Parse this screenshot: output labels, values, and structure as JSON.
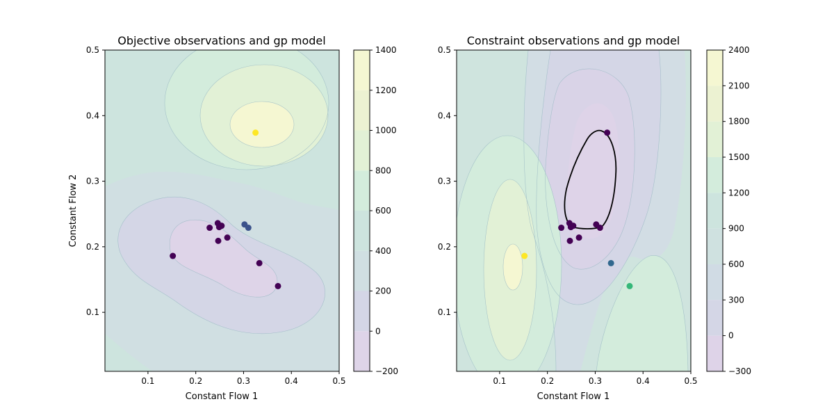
{
  "chart_data": [
    {
      "type": "contour",
      "title": "Objective observations and gp model",
      "xlabel": "Constant Flow 1",
      "ylabel": "Constant Flow 2",
      "xlim": [
        0.01,
        0.5
      ],
      "ylim": [
        0.01,
        0.5
      ],
      "x_ticks": [
        0.1,
        0.2,
        0.3,
        0.4,
        0.5
      ],
      "y_ticks": [
        0.1,
        0.2,
        0.3,
        0.4,
        0.5
      ],
      "colorbar": {
        "ticks": [
          -200,
          0,
          200,
          400,
          600,
          800,
          1000,
          1200,
          1400
        ],
        "range": [
          -200,
          1400
        ]
      },
      "contour_levels": [
        -200,
        0,
        200,
        400,
        600,
        800,
        1000,
        1200,
        1400
      ],
      "points": [
        {
          "x": 0.152,
          "y": 0.186,
          "color": "#440154"
        },
        {
          "x": 0.229,
          "y": 0.229,
          "color": "#440154"
        },
        {
          "x": 0.246,
          "y": 0.236,
          "color": "#440154"
        },
        {
          "x": 0.249,
          "y": 0.23,
          "color": "#440154"
        },
        {
          "x": 0.254,
          "y": 0.232,
          "color": "#440154"
        },
        {
          "x": 0.247,
          "y": 0.209,
          "color": "#440154"
        },
        {
          "x": 0.266,
          "y": 0.214,
          "color": "#440154"
        },
        {
          "x": 0.302,
          "y": 0.234,
          "color": "#3b528b"
        },
        {
          "x": 0.31,
          "y": 0.229,
          "color": "#3b528b"
        },
        {
          "x": 0.333,
          "y": 0.175,
          "color": "#440154"
        },
        {
          "x": 0.372,
          "y": 0.14,
          "color": "#440154"
        },
        {
          "x": 0.325,
          "y": 0.374,
          "color": "#fde725"
        }
      ]
    },
    {
      "type": "contour",
      "title": "Constraint observations and gp model",
      "xlabel": "Constant Flow 1",
      "ylabel": "",
      "xlim": [
        0.01,
        0.5
      ],
      "ylim": [
        0.01,
        0.5
      ],
      "x_ticks": [
        0.1,
        0.2,
        0.3,
        0.4,
        0.5
      ],
      "y_ticks": [
        0.1,
        0.2,
        0.3,
        0.4,
        0.5
      ],
      "colorbar": {
        "ticks": [
          -300,
          0,
          300,
          600,
          900,
          1200,
          1500,
          1800,
          2100,
          2400
        ],
        "range": [
          -300,
          2400
        ]
      },
      "contour_levels": [
        -300,
        0,
        300,
        600,
        900,
        1200,
        1500,
        1800,
        2100,
        2400
      ],
      "points": [
        {
          "x": 0.152,
          "y": 0.186,
          "color": "#fde725"
        },
        {
          "x": 0.229,
          "y": 0.229,
          "color": "#440154"
        },
        {
          "x": 0.246,
          "y": 0.236,
          "color": "#440154"
        },
        {
          "x": 0.249,
          "y": 0.23,
          "color": "#440154"
        },
        {
          "x": 0.254,
          "y": 0.232,
          "color": "#440154"
        },
        {
          "x": 0.247,
          "y": 0.209,
          "color": "#440154"
        },
        {
          "x": 0.266,
          "y": 0.214,
          "color": "#440154"
        },
        {
          "x": 0.302,
          "y": 0.234,
          "color": "#440154"
        },
        {
          "x": 0.31,
          "y": 0.229,
          "color": "#440154"
        },
        {
          "x": 0.333,
          "y": 0.175,
          "color": "#31688e"
        },
        {
          "x": 0.372,
          "y": 0.14,
          "color": "#35b779"
        },
        {
          "x": 0.325,
          "y": 0.374,
          "color": "#440154"
        }
      ]
    }
  ]
}
